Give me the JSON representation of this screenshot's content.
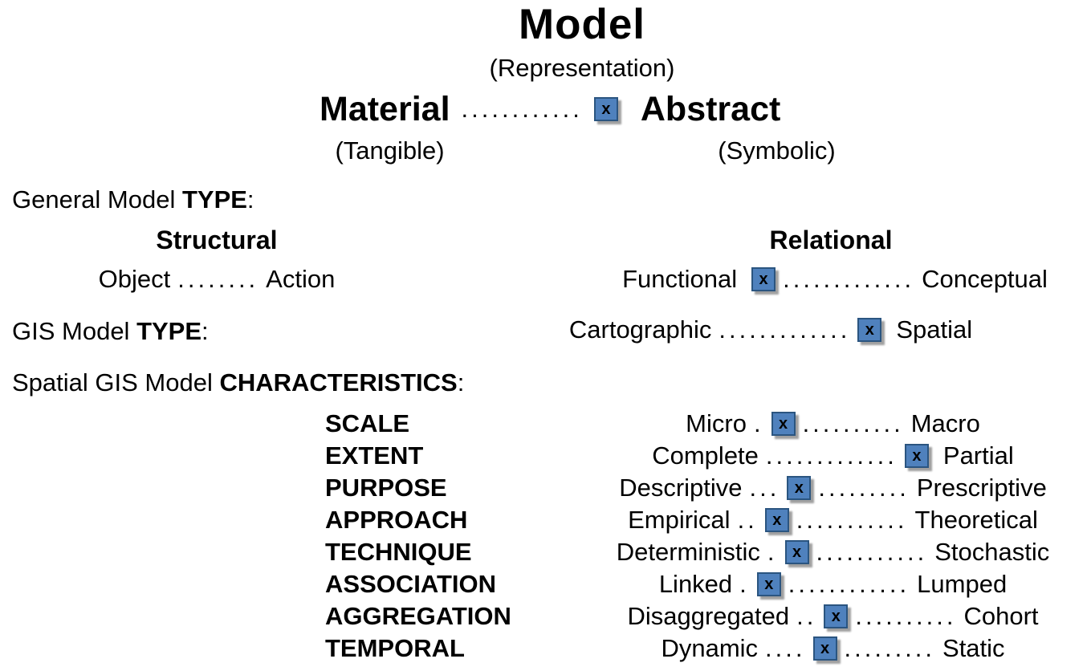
{
  "marker_glyph": "x",
  "colors": {
    "marker_fill": "#4f81bd",
    "marker_border": "#2b5580",
    "marker_shadow": "#a0a0a0",
    "text_color": "#000000"
  },
  "header": {
    "title": "Model",
    "subtitle": "(Representation)"
  },
  "material_spectrum": {
    "left": "Material",
    "dots_before": "............",
    "dots_after": "",
    "right": "Abstract",
    "left_caption": "(Tangible)",
    "right_caption": "(Symbolic)"
  },
  "general_type": {
    "heading_text": "General Model ",
    "heading_bold": "TYPE",
    "heading_colon": ":",
    "structural": {
      "heading": "Structural",
      "left": "Object",
      "dots": "........",
      "right": "Action"
    },
    "relational": {
      "heading": "Relational",
      "left": "Functional",
      "dots_before": "",
      "dots_after": ".............",
      "right": "Conceptual"
    }
  },
  "gis_type": {
    "heading_text": "GIS Model ",
    "heading_bold": "TYPE",
    "heading_colon": ":",
    "spectrum": {
      "left": "Cartographic",
      "dots_before": ".............",
      "dots_after": "",
      "right": "Spatial"
    }
  },
  "characteristics": {
    "heading_text": "Spatial GIS Model ",
    "heading_bold": "CHARACTERISTICS",
    "heading_colon": ":",
    "rows": [
      {
        "label": "SCALE",
        "left": "Micro",
        "dots_before": ".",
        "dots_after": "..........",
        "right": "Macro"
      },
      {
        "label": "EXTENT",
        "left": "Complete",
        "dots_before": ".............",
        "dots_after": "",
        "right": "Partial"
      },
      {
        "label": "PURPOSE",
        "left": "Descriptive",
        "dots_before": "...",
        "dots_after": ".........",
        "right": "Prescriptive"
      },
      {
        "label": "APPROACH",
        "left": "Empirical",
        "dots_before": "..",
        "dots_after": "...........",
        "right": "Theoretical"
      },
      {
        "label": "TECHNIQUE",
        "left": "Deterministic",
        "dots_before": ".",
        "dots_after": "...........",
        "right": "Stochastic"
      },
      {
        "label": "ASSOCIATION",
        "left": "Linked",
        "dots_before": ".",
        "dots_after": "............",
        "right": "Lumped"
      },
      {
        "label": "AGGREGATION",
        "left": "Disaggregated",
        "dots_before": "..",
        "dots_after": "..........",
        "right": "Cohort"
      },
      {
        "label": "TEMPORAL",
        "left": "Dynamic",
        "dots_before": "....",
        "dots_after": ".........",
        "right": "Static"
      }
    ]
  }
}
